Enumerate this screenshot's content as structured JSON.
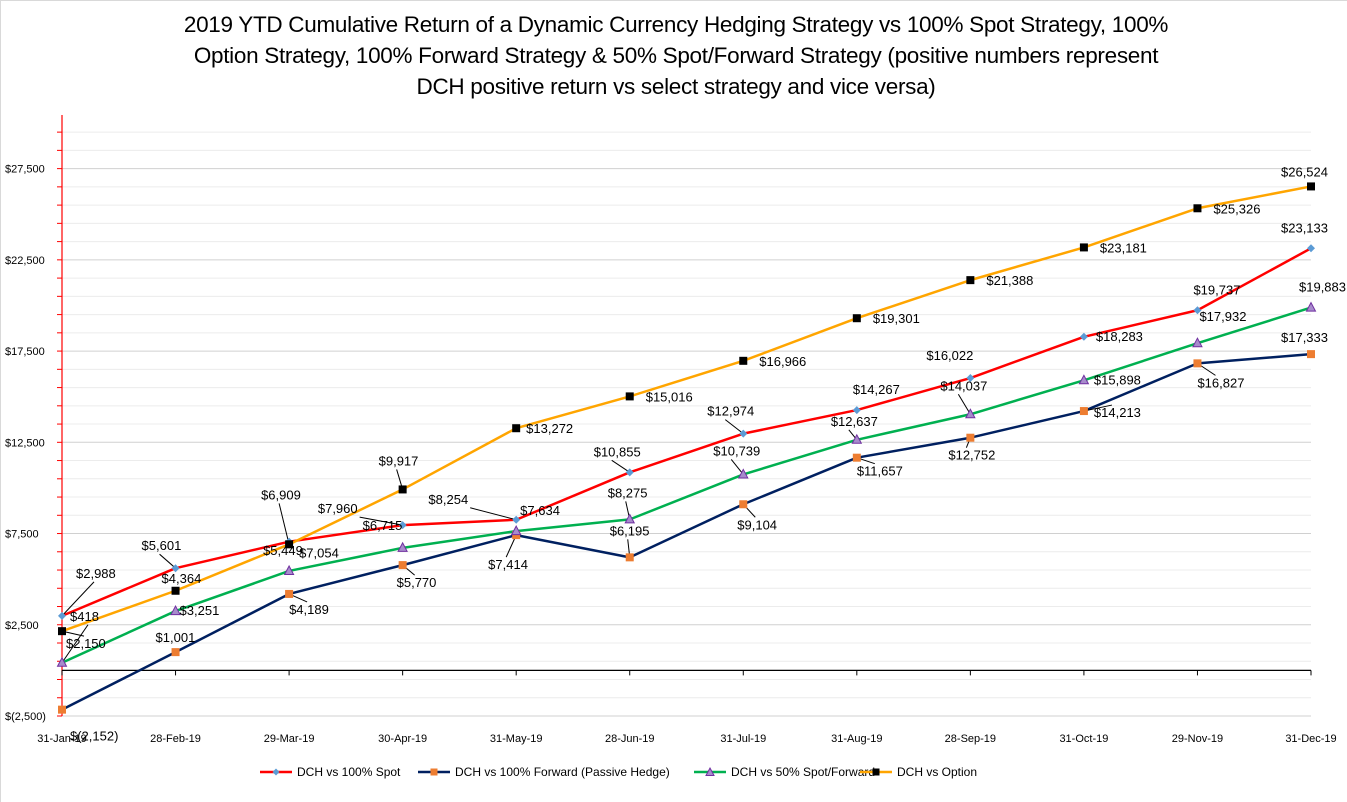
{
  "chart_data": {
    "type": "line",
    "title": "2019 YTD Cumulative Return of a Dynamic Currency Hedging Strategy vs 100% Spot Strategy, 100% Option Strategy, 100% Forward Strategy & 50% Spot/Forward Strategy (positive numbers represent DCH positive return vs select strategy and vice versa)",
    "title_lines": [
      "2019 YTD Cumulative Return of a Dynamic Currency Hedging Strategy vs 100% Spot Strategy, 100%",
      "Option Strategy, 100% Forward Strategy & 50% Spot/Forward Strategy (positive numbers represent",
      "DCH positive return vs select strategy and vice versa)"
    ],
    "xlabel": "",
    "ylabel": "",
    "categories": [
      "31-Jan-19",
      "28-Feb-19",
      "29-Mar-19",
      "30-Apr-19",
      "31-May-19",
      "28-Jun-19",
      "31-Jul-19",
      "31-Aug-19",
      "28-Sep-19",
      "31-Oct-19",
      "29-Nov-19",
      "31-Dec-19"
    ],
    "ylim": [
      -2500,
      30000
    ],
    "ytick_values": [
      -2500,
      2500,
      7500,
      12500,
      17500,
      22500,
      27500
    ],
    "ytick_labels": [
      "$(2,500)",
      "$2,500",
      "$7,500",
      "$12,500",
      "$17,500",
      "$22,500",
      "$27,500"
    ],
    "grid": true,
    "legend_position": "bottom",
    "series": [
      {
        "name": "DCH vs 100% Spot",
        "line_color": "#ff0000",
        "marker": "diamond",
        "marker_color": "#5b9bd5",
        "values": [
          2988,
          5601,
          7054,
          7960,
          8254,
          10855,
          12974,
          14267,
          16022,
          18283,
          19737,
          23133
        ],
        "labels": [
          "$2,988",
          "$5,601",
          "$7,054",
          "$7,960",
          "$8,254",
          "$10,855",
          "$12,974",
          "$14,267",
          "$16,022",
          "$18,283",
          "$19,737",
          "$23,133"
        ]
      },
      {
        "name": "DCH vs 100% Forward (Passive Hedge)",
        "line_color": "#002060",
        "marker": "square",
        "marker_color": "#ed7d31",
        "values": [
          -2152,
          1001,
          4189,
          5770,
          7414,
          6195,
          9104,
          11657,
          12752,
          14213,
          16827,
          17333
        ],
        "labels": [
          "$(2,152)",
          "$1,001",
          "$4,189",
          "$5,770",
          "$7,414",
          "$6,195",
          "$9,104",
          "$11,657",
          "$12,752",
          "$14,213",
          "$16,827",
          "$17,333"
        ]
      },
      {
        "name": "DCH vs 50% Spot/Forward",
        "line_color": "#00b050",
        "marker": "triangle",
        "marker_color": "#7030a0",
        "values": [
          418,
          3251,
          5449,
          6715,
          7634,
          8275,
          10739,
          12637,
          14037,
          15898,
          17932,
          19883
        ],
        "labels": [
          "$418",
          "$3,251",
          "$5,449",
          "$6,715",
          "$7,634",
          "$8,275",
          "$10,739",
          "$12,637",
          "$14,037",
          "$15,898",
          "$17,932",
          "$19,883"
        ]
      },
      {
        "name": "DCH vs Option",
        "line_color": "#ffa500",
        "marker": "square",
        "marker_color": "#000000",
        "values": [
          2150,
          4364,
          6909,
          9917,
          13272,
          15016,
          16966,
          19301,
          21388,
          23181,
          25326,
          26524
        ],
        "labels": [
          "$2,150",
          "$4,364",
          "$6,909",
          "$9,917",
          "$13,272",
          "$15,016",
          "$16,966",
          "$19,301",
          "$21,388",
          "$23,181",
          "$25,326",
          "$26,524"
        ]
      }
    ]
  }
}
